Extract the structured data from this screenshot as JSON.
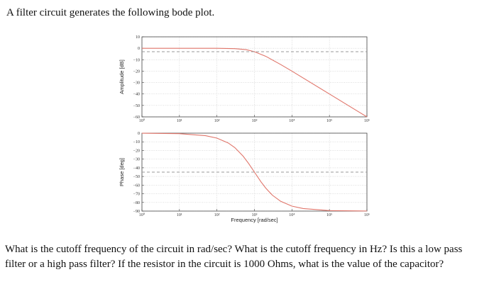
{
  "document": {
    "intro": "A filter circuit generates the following bode plot.",
    "question": "What is the cutoff frequency of the circuit in rad/sec? What is the cutoff frequency in Hz? Is this a low pass filter or a high pass filter? If the resistor in the circuit is 1000 Ohms, what is the value of the capacitor?"
  },
  "chart_data": [
    {
      "type": "line",
      "title": "",
      "xlabel": "",
      "ylabel": "Amplitude [dB]",
      "x_scale": "log",
      "xlim": [
        1,
        1000000
      ],
      "ylim": [
        -60,
        10
      ],
      "x_ticks": [
        {
          "value": 1,
          "label": "10⁰"
        },
        {
          "value": 10,
          "label": "10¹"
        },
        {
          "value": 100,
          "label": "10²"
        },
        {
          "value": 1000,
          "label": "10³"
        },
        {
          "value": 10000,
          "label": "10⁴"
        },
        {
          "value": 100000,
          "label": "10⁵"
        },
        {
          "value": 1000000,
          "label": "10⁶"
        }
      ],
      "y_ticks": [
        10,
        0,
        -10,
        -20,
        -30,
        -40,
        -50,
        -60
      ],
      "y_tick_labels": [
        "10",
        "0",
        "−10",
        "−20",
        "−30",
        "−40",
        "−50",
        "−60"
      ],
      "grid": true,
      "series": [
        {
          "color": "#e0756a",
          "x": [
            1,
            10,
            100,
            300,
            600,
            1000,
            2000,
            5000,
            10000,
            100000,
            1000000
          ],
          "values": [
            0,
            0,
            -0.04,
            -0.35,
            -1.2,
            -3.0,
            -7.0,
            -14.2,
            -20.0,
            -40.0,
            -60.0
          ]
        },
        {
          "style": "dashed",
          "color": "#9a9a9a",
          "x": [
            1,
            1000000
          ],
          "values": [
            -3,
            -3
          ]
        }
      ]
    },
    {
      "type": "line",
      "title": "",
      "xlabel": "Frequency [rad/sec]",
      "ylabel": "Phase [deg]",
      "x_scale": "log",
      "xlim": [
        1,
        1000000
      ],
      "ylim": [
        -90,
        0
      ],
      "x_ticks": [
        {
          "value": 1,
          "label": "10⁰"
        },
        {
          "value": 10,
          "label": "10¹"
        },
        {
          "value": 100,
          "label": "10²"
        },
        {
          "value": 1000,
          "label": "10³"
        },
        {
          "value": 10000,
          "label": "10⁴"
        },
        {
          "value": 100000,
          "label": "10⁵"
        },
        {
          "value": 1000000,
          "label": "10⁶"
        }
      ],
      "y_ticks": [
        0,
        -10,
        -20,
        -30,
        -40,
        -50,
        -60,
        -70,
        -80,
        -90
      ],
      "y_tick_labels": [
        "0",
        "−10",
        "−20",
        "−30",
        "−40",
        "−50",
        "−60",
        "−70",
        "−80",
        "−90"
      ],
      "grid": true,
      "series": [
        {
          "color": "#e0756a",
          "x": [
            1,
            10,
            50,
            100,
            200,
            300,
            500,
            700,
            1000,
            1500,
            2000,
            3000,
            5000,
            10000,
            20000,
            100000,
            1000000
          ],
          "values": [
            -0.06,
            -0.6,
            -2.9,
            -5.7,
            -11.3,
            -16.7,
            -26.6,
            -35.0,
            -45.0,
            -56.3,
            -63.4,
            -71.6,
            -78.7,
            -84.3,
            -87.1,
            -89.4,
            -89.9
          ]
        },
        {
          "style": "dashed",
          "color": "#9a9a9a",
          "x": [
            1,
            1000000
          ],
          "values": [
            -45,
            -45
          ]
        }
      ]
    }
  ]
}
